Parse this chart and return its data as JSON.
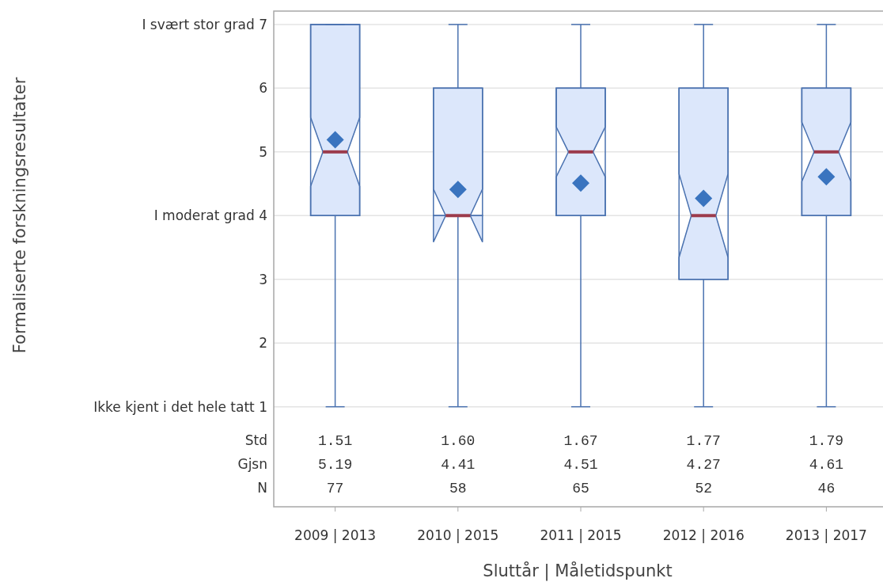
{
  "chart_data": {
    "type": "box",
    "xlabel": "Sluttår | Måletidspunkt",
    "ylabel": "Formaliserte forskningsresultater",
    "categories": [
      "2009 | 2013",
      "2010 | 2015",
      "2011 | 2015",
      "2012 | 2016",
      "2013 | 2017"
    ],
    "series": [
      {
        "color": "#4a72b0",
        "boxes": [
          {
            "low": 1,
            "q1": 4,
            "median": 5,
            "q3": 7,
            "high": 7,
            "mean": 5.19
          },
          {
            "low": 1,
            "q1": 4,
            "median": 4,
            "q3": 6,
            "high": 7,
            "mean": 4.41
          },
          {
            "low": 1,
            "q1": 4,
            "median": 5,
            "q3": 6,
            "high": 7,
            "mean": 4.51
          },
          {
            "low": 1,
            "q1": 3,
            "median": 4,
            "q3": 6,
            "high": 7,
            "mean": 4.27
          },
          {
            "low": 1,
            "q1": 4,
            "median": 5,
            "q3": 6,
            "high": 7,
            "mean": 4.61
          }
        ]
      }
    ],
    "ylim": [
      -0.57,
      7.21
    ],
    "yticks": [
      {
        "value": 1,
        "label": "Ikke kjent i det hele tatt 1"
      },
      2,
      3,
      {
        "value": 4,
        "label": "I moderat grad 4"
      },
      5,
      6,
      {
        "value": 7,
        "label": "I svært stor grad 7"
      }
    ],
    "grid": "y",
    "marker": "diamond",
    "annotations": [
      "Std",
      "1.51",
      "1.60",
      "1.67",
      "1.77",
      "1.79",
      "Gjsn",
      "5.19",
      "4.41",
      "4.51",
      "4.27",
      "4.61",
      "N",
      "77",
      "58",
      "65",
      "52",
      "46"
    ]
  }
}
